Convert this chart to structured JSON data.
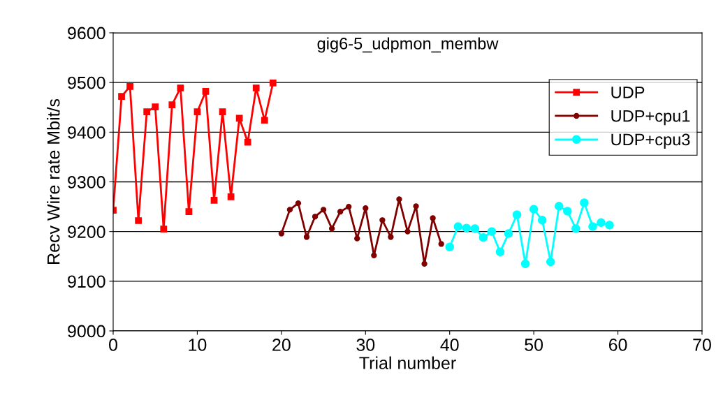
{
  "chart_data": {
    "type": "line",
    "title": "gig6-5_udpmon_membw",
    "xlabel": "Trial number",
    "ylabel": "Recv Wire rate Mbit/s",
    "xlim": [
      0,
      70
    ],
    "xticks": [
      0,
      10,
      20,
      30,
      40,
      50,
      60,
      70
    ],
    "ylim": [
      9000,
      9600
    ],
    "yticks": [
      9000,
      9100,
      9200,
      9300,
      9400,
      9500,
      9600
    ],
    "grid": "y",
    "legend": "top right",
    "series": [
      {
        "name": "UDP",
        "color": "#ff0000",
        "marker": "square",
        "x": [
          0,
          1,
          2,
          3,
          4,
          5,
          6,
          7,
          8,
          9,
          10,
          11,
          12,
          13,
          14,
          15,
          16,
          17,
          18,
          19
        ],
        "values": [
          9243,
          9472,
          9492,
          9222,
          9441,
          9451,
          9205,
          9455,
          9489,
          9240,
          9441,
          9482,
          9263,
          9441,
          9270,
          9428,
          9380,
          9489,
          9424,
          9499
        ]
      },
      {
        "name": "UDP+cpu1",
        "color": "#800000",
        "marker": "circle",
        "x": [
          20,
          21,
          22,
          23,
          24,
          25,
          26,
          27,
          28,
          29,
          30,
          31,
          32,
          33,
          34,
          35,
          36,
          37,
          38,
          39
        ],
        "values": [
          9196,
          9244,
          9257,
          9189,
          9230,
          9244,
          9206,
          9240,
          9250,
          9186,
          9247,
          9152,
          9223,
          9189,
          9265,
          9200,
          9251,
          9135,
          9227,
          9175
        ]
      },
      {
        "name": "UDP+cpu3",
        "color": "#00ffff",
        "marker": "circle",
        "x": [
          40,
          41,
          42,
          43,
          44,
          45,
          46,
          47,
          48,
          49,
          50,
          51,
          52,
          53,
          54,
          55,
          56,
          57,
          58,
          59
        ],
        "values": [
          9169,
          9210,
          9207,
          9206,
          9188,
          9200,
          9159,
          9196,
          9234,
          9135,
          9245,
          9223,
          9139,
          9251,
          9241,
          9206,
          9258,
          9210,
          9218,
          9213
        ]
      }
    ]
  }
}
